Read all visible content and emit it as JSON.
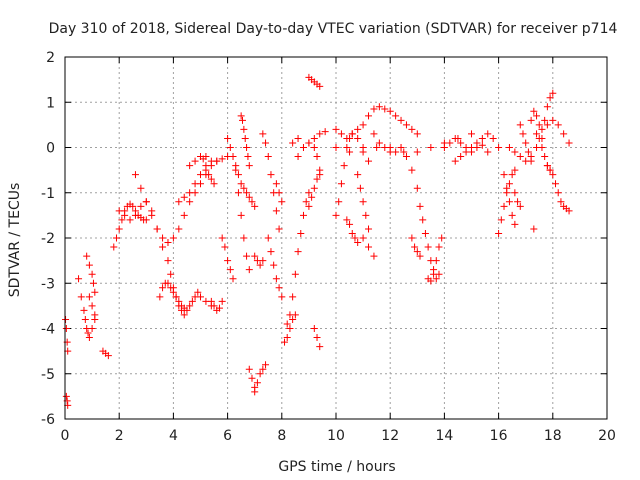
{
  "chart_data": {
    "type": "scatter",
    "title": "Day 310 of 2018, Sidereal Day-to-day VTEC variation (SDTVAR) for receiver p714",
    "xlabel": "GPS time / hours",
    "ylabel": "SDTVAR / TECUs",
    "xlim": [
      0,
      20
    ],
    "ylim": [
      -6,
      2
    ],
    "xticks": [
      "0",
      "2",
      "4",
      "6",
      "8",
      "10",
      "12",
      "14",
      "16",
      "18",
      "20"
    ],
    "yticks": [
      "-6",
      "-5",
      "-4",
      "-3",
      "-2",
      "-1",
      "0",
      "1",
      "2"
    ],
    "grid": true,
    "marker": "plus",
    "marker_color": "#ff0000",
    "series": [
      {
        "name": "s01",
        "x": [
          0.02,
          0.05,
          0.08,
          0.1
        ],
        "y": [
          -3.8,
          -4.0,
          -4.3,
          -4.5
        ]
      },
      {
        "name": "s02",
        "x": [
          0.05,
          0.08,
          0.1
        ],
        "y": [
          -5.5,
          -5.6,
          -5.7
        ]
      },
      {
        "name": "s03",
        "x": [
          0.5,
          0.6,
          0.7,
          0.75,
          0.8,
          0.85,
          0.9,
          1.0,
          1.1
        ],
        "y": [
          -2.9,
          -3.3,
          -3.6,
          -3.8,
          -4.0,
          -4.1,
          -4.2,
          -4.0,
          -3.8
        ]
      },
      {
        "name": "s04",
        "x": [
          0.8,
          0.9,
          1.0,
          1.05,
          1.1
        ],
        "y": [
          -2.4,
          -2.6,
          -2.8,
          -3.0,
          -3.2
        ]
      },
      {
        "name": "s05",
        "x": [
          0.9,
          1.0,
          1.1
        ],
        "y": [
          -3.3,
          -3.5,
          -3.7
        ]
      },
      {
        "name": "s06",
        "x": [
          1.4,
          1.5,
          1.6
        ],
        "y": [
          -4.5,
          -4.55,
          -4.6
        ]
      },
      {
        "name": "s07",
        "x": [
          1.8,
          1.9,
          2.0,
          2.1,
          2.2,
          2.3,
          2.4,
          2.5,
          2.6,
          2.7,
          2.8,
          2.9,
          3.0
        ],
        "y": [
          -2.2,
          -2.0,
          -1.8,
          -1.6,
          -1.4,
          -1.3,
          -1.25,
          -1.3,
          -1.4,
          -1.5,
          -1.55,
          -1.6,
          -1.6
        ]
      },
      {
        "name": "s08",
        "x": [
          2.0,
          2.2,
          2.4,
          2.6,
          2.8,
          3.0,
          3.2,
          3.4,
          3.6
        ],
        "y": [
          -1.4,
          -1.5,
          -1.6,
          -1.5,
          -1.3,
          -1.2,
          -1.4,
          -1.8,
          -2.2
        ]
      },
      {
        "name": "s09",
        "x": [
          2.6,
          2.8,
          3.0,
          3.2,
          3.4,
          3.6,
          3.8,
          4.0,
          4.2,
          4.4,
          4.6,
          4.8,
          5.0,
          5.2
        ],
        "y": [
          -0.6,
          -0.9,
          -1.2,
          -1.5,
          -1.8,
          -2.0,
          -2.1,
          -2.0,
          -1.8,
          -1.5,
          -1.2,
          -1.0,
          -0.8,
          -0.6
        ]
      },
      {
        "name": "s10",
        "x": [
          3.5,
          3.6,
          3.7,
          3.8,
          3.9,
          4.0,
          4.1,
          4.2,
          4.3,
          4.4,
          4.5,
          4.6,
          4.7,
          4.8,
          4.9,
          5.0,
          5.2,
          5.4
        ],
        "y": [
          -3.3,
          -3.1,
          -3.0,
          -3.0,
          -3.1,
          -3.2,
          -3.3,
          -3.4,
          -3.5,
          -3.55,
          -3.6,
          -3.5,
          -3.4,
          -3.3,
          -3.2,
          -3.3,
          -3.4,
          -3.5
        ]
      },
      {
        "name": "s11",
        "x": [
          3.8,
          3.9,
          4.0,
          4.1,
          4.2,
          4.3,
          4.4
        ],
        "y": [
          -2.5,
          -2.8,
          -3.1,
          -3.3,
          -3.5,
          -3.6,
          -3.7
        ]
      },
      {
        "name": "s12",
        "x": [
          4.2,
          4.4,
          4.6,
          4.8,
          5.0,
          5.2,
          5.4,
          5.6
        ],
        "y": [
          -1.2,
          -1.1,
          -1.0,
          -0.8,
          -0.6,
          -0.5,
          -0.4,
          -0.3
        ]
      },
      {
        "name": "s13",
        "x": [
          4.6,
          4.8,
          5.0,
          5.1,
          5.2,
          5.3,
          5.4,
          5.5
        ],
        "y": [
          -0.4,
          -0.3,
          -0.2,
          -0.25,
          -0.4,
          -0.6,
          -0.7,
          -0.8
        ]
      },
      {
        "name": "s14",
        "x": [
          5.2,
          5.4,
          5.6,
          5.8,
          6.0
        ],
        "y": [
          -0.2,
          -0.3,
          -0.3,
          -0.25,
          -0.2
        ]
      },
      {
        "name": "s15",
        "x": [
          5.4,
          5.5,
          5.6,
          5.7,
          5.8
        ],
        "y": [
          -3.4,
          -3.5,
          -3.6,
          -3.55,
          -3.4
        ]
      },
      {
        "name": "s16",
        "x": [
          5.8,
          5.9,
          6.0,
          6.1,
          6.2
        ],
        "y": [
          -2.0,
          -2.2,
          -2.5,
          -2.7,
          -2.9
        ]
      },
      {
        "name": "s17",
        "x": [
          6.0,
          6.1,
          6.2,
          6.3,
          6.4,
          6.5,
          6.6,
          6.7,
          6.8,
          6.9,
          7.0
        ],
        "y": [
          0.2,
          0.0,
          -0.2,
          -0.4,
          -0.6,
          -0.8,
          -0.9,
          -1.0,
          -1.1,
          -1.2,
          -1.3
        ]
      },
      {
        "name": "s18",
        "x": [
          6.3,
          6.4,
          6.5,
          6.6,
          6.7,
          6.8
        ],
        "y": [
          -0.5,
          -1.0,
          -1.5,
          -2.0,
          -2.4,
          -2.7
        ]
      },
      {
        "name": "s19",
        "x": [
          6.5,
          6.55,
          6.6,
          6.65,
          6.7,
          6.75,
          6.8
        ],
        "y": [
          0.7,
          0.6,
          0.4,
          0.2,
          0.0,
          -0.2,
          -0.4
        ]
      },
      {
        "name": "s20",
        "x": [
          6.8,
          6.9,
          7.0
        ],
        "y": [
          -4.9,
          -5.1,
          -5.3
        ]
      },
      {
        "name": "s21",
        "x": [
          7.0,
          7.1,
          7.2,
          7.3,
          7.4
        ],
        "y": [
          -5.4,
          -5.2,
          -5.0,
          -4.9,
          -4.8
        ]
      },
      {
        "name": "s22",
        "x": [
          7.0,
          7.1,
          7.2,
          7.3
        ],
        "y": [
          -2.4,
          -2.5,
          -2.6,
          -2.5
        ]
      },
      {
        "name": "s23",
        "x": [
          7.3,
          7.4,
          7.5,
          7.6,
          7.7,
          7.8,
          7.9
        ],
        "y": [
          0.3,
          0.1,
          -0.2,
          -0.6,
          -1.0,
          -1.4,
          -1.8
        ]
      },
      {
        "name": "s24",
        "x": [
          7.5,
          7.6,
          7.7,
          7.8,
          7.9,
          8.0
        ],
        "y": [
          -2.0,
          -2.3,
          -2.6,
          -2.9,
          -3.1,
          -3.3
        ]
      },
      {
        "name": "s25",
        "x": [
          7.8,
          7.9,
          8.0
        ],
        "y": [
          -0.8,
          -1.0,
          -1.2
        ]
      },
      {
        "name": "s26",
        "x": [
          8.1,
          8.2,
          8.3,
          8.4,
          8.5
        ],
        "y": [
          -4.3,
          -4.2,
          -4.0,
          -3.8,
          -3.7
        ]
      },
      {
        "name": "s27",
        "x": [
          8.2,
          8.3,
          8.4,
          8.5,
          8.6,
          8.7,
          8.8,
          8.9,
          9.0
        ],
        "y": [
          -3.9,
          -3.7,
          -3.3,
          -2.8,
          -2.3,
          -1.9,
          -1.5,
          -1.2,
          -1.0
        ]
      },
      {
        "name": "s28",
        "x": [
          8.4,
          8.6,
          8.8,
          9.0,
          9.2,
          9.4,
          9.6
        ],
        "y": [
          0.1,
          0.2,
          0.0,
          0.1,
          0.2,
          0.3,
          0.35
        ]
      },
      {
        "name": "s29",
        "x": [
          8.6,
          8.8,
          9.0,
          9.2,
          9.3,
          9.4
        ],
        "y": [
          -0.2,
          0.0,
          0.1,
          0.0,
          -0.2,
          -0.5
        ]
      },
      {
        "name": "s30",
        "x": [
          9.0,
          9.1,
          9.2,
          9.3,
          9.4
        ],
        "y": [
          1.55,
          1.5,
          1.45,
          1.4,
          1.35
        ]
      },
      {
        "name": "s31",
        "x": [
          9.0,
          9.1,
          9.2,
          9.3,
          9.4
        ],
        "y": [
          -1.3,
          -1.1,
          -0.9,
          -0.7,
          -0.6
        ]
      },
      {
        "name": "s32",
        "x": [
          9.2,
          9.3,
          9.4
        ],
        "y": [
          -4.0,
          -4.2,
          -4.4
        ]
      },
      {
        "name": "s33",
        "x": [
          10.0,
          10.2,
          10.4,
          10.6,
          10.8,
          11.0,
          11.2,
          11.4,
          11.6,
          11.8,
          12.0,
          12.2,
          12.4,
          12.6,
          12.8,
          13.0
        ],
        "y": [
          0.4,
          0.3,
          0.2,
          0.3,
          0.4,
          0.5,
          0.7,
          0.85,
          0.9,
          0.85,
          0.8,
          0.7,
          0.6,
          0.5,
          0.4,
          0.3
        ]
      },
      {
        "name": "s34",
        "x": [
          10.0,
          10.5,
          11.0,
          11.5,
          12.0,
          12.5,
          13.0,
          13.5,
          14.0,
          14.5,
          15.0
        ],
        "y": [
          0.0,
          -0.1,
          -0.1,
          0.0,
          0.0,
          -0.1,
          -0.1,
          0.0,
          0.1,
          0.2,
          0.3
        ]
      },
      {
        "name": "s35",
        "x": [
          10.0,
          10.1,
          10.2,
          10.3,
          10.4,
          10.5,
          10.6,
          10.8,
          11.0,
          11.2
        ],
        "y": [
          -1.5,
          -1.2,
          -0.8,
          -0.4,
          0.0,
          0.2,
          0.3,
          0.2,
          0.0,
          -0.3
        ]
      },
      {
        "name": "s36",
        "x": [
          10.4,
          10.5,
          10.6,
          10.7,
          10.8
        ],
        "y": [
          -1.6,
          -1.7,
          -1.9,
          -2.0,
          -2.1
        ]
      },
      {
        "name": "s37",
        "x": [
          10.8,
          10.9,
          11.0,
          11.1,
          11.2
        ],
        "y": [
          -0.6,
          -0.9,
          -1.2,
          -1.5,
          -1.8
        ]
      },
      {
        "name": "s38",
        "x": [
          11.0,
          11.2,
          11.4
        ],
        "y": [
          -2.0,
          -2.2,
          -2.4
        ]
      },
      {
        "name": "s39",
        "x": [
          11.4,
          11.6,
          11.8,
          12.0,
          12.2,
          12.4
        ],
        "y": [
          0.3,
          0.1,
          0.0,
          -0.1,
          -0.1,
          0.0
        ]
      },
      {
        "name": "s40",
        "x": [
          12.4,
          12.6,
          12.8,
          13.0,
          13.1,
          13.2,
          13.3,
          13.4,
          13.5,
          13.6,
          13.7,
          13.8
        ],
        "y": [
          0.0,
          -0.2,
          -0.5,
          -0.9,
          -1.3,
          -1.6,
          -1.9,
          -2.2,
          -2.5,
          -2.7,
          -2.9,
          -2.8
        ]
      },
      {
        "name": "s41",
        "x": [
          12.8,
          12.9,
          13.0,
          13.1
        ],
        "y": [
          -2.0,
          -2.2,
          -2.3,
          -2.4
        ]
      },
      {
        "name": "s42",
        "x": [
          13.4,
          13.5,
          13.6,
          13.7,
          13.8,
          13.9
        ],
        "y": [
          -2.9,
          -2.95,
          -2.8,
          -2.5,
          -2.2,
          -2.0
        ]
      },
      {
        "name": "s43",
        "x": [
          14.0,
          14.2,
          14.4,
          14.6,
          14.8,
          15.0,
          15.2,
          15.4,
          15.6,
          15.8,
          16.0
        ],
        "y": [
          0.0,
          0.1,
          0.2,
          0.1,
          0.0,
          -0.1,
          0.0,
          0.2,
          0.3,
          0.2,
          0.0
        ]
      },
      {
        "name": "s44",
        "x": [
          14.4,
          14.6,
          14.8,
          15.0,
          15.2,
          15.4,
          15.6
        ],
        "y": [
          -0.3,
          -0.2,
          -0.1,
          0.0,
          0.1,
          0.05,
          -0.1
        ]
      },
      {
        "name": "s45",
        "x": [
          16.0,
          16.1,
          16.2,
          16.3,
          16.4,
          16.5,
          16.6
        ],
        "y": [
          -1.9,
          -1.6,
          -1.3,
          -1.0,
          -0.8,
          -0.6,
          -0.5
        ]
      },
      {
        "name": "s46",
        "x": [
          16.2,
          16.3,
          16.4,
          16.5,
          16.6
        ],
        "y": [
          -0.6,
          -0.9,
          -1.2,
          -1.5,
          -1.7
        ]
      },
      {
        "name": "s47",
        "x": [
          16.4,
          16.6,
          16.8,
          17.0,
          17.2,
          17.4,
          17.6,
          17.8,
          18.0,
          18.2,
          18.4,
          18.6
        ],
        "y": [
          0.0,
          -0.1,
          -0.2,
          -0.3,
          -0.2,
          0.0,
          0.2,
          0.5,
          0.6,
          0.5,
          0.3,
          0.1
        ]
      },
      {
        "name": "s48",
        "x": [
          16.8,
          16.9,
          17.0,
          17.1,
          17.2
        ],
        "y": [
          0.5,
          0.3,
          0.1,
          -0.1,
          -0.3
        ]
      },
      {
        "name": "s49",
        "x": [
          17.2,
          17.3,
          17.4,
          17.5,
          17.6,
          17.7,
          17.8,
          17.9,
          18.0
        ],
        "y": [
          0.6,
          0.8,
          0.7,
          0.5,
          0.4,
          0.6,
          0.9,
          1.1,
          1.2
        ]
      },
      {
        "name": "s50",
        "x": [
          17.4,
          17.5,
          17.6,
          17.7,
          17.8,
          17.9
        ],
        "y": [
          0.3,
          0.2,
          0.0,
          -0.2,
          -0.4,
          -0.5
        ]
      },
      {
        "name": "s51",
        "x": [
          17.8,
          17.9,
          18.0,
          18.1,
          18.2,
          18.3,
          18.4,
          18.5,
          18.6
        ],
        "y": [
          -0.4,
          -0.5,
          -0.6,
          -0.8,
          -1.0,
          -1.2,
          -1.3,
          -1.35,
          -1.4
        ]
      },
      {
        "name": "s52",
        "x": [
          17.3
        ],
        "y": [
          -1.8
        ]
      },
      {
        "name": "s53",
        "x": [
          16.6,
          16.7,
          16.8
        ],
        "y": [
          -1.0,
          -1.2,
          -1.3
        ]
      }
    ]
  }
}
